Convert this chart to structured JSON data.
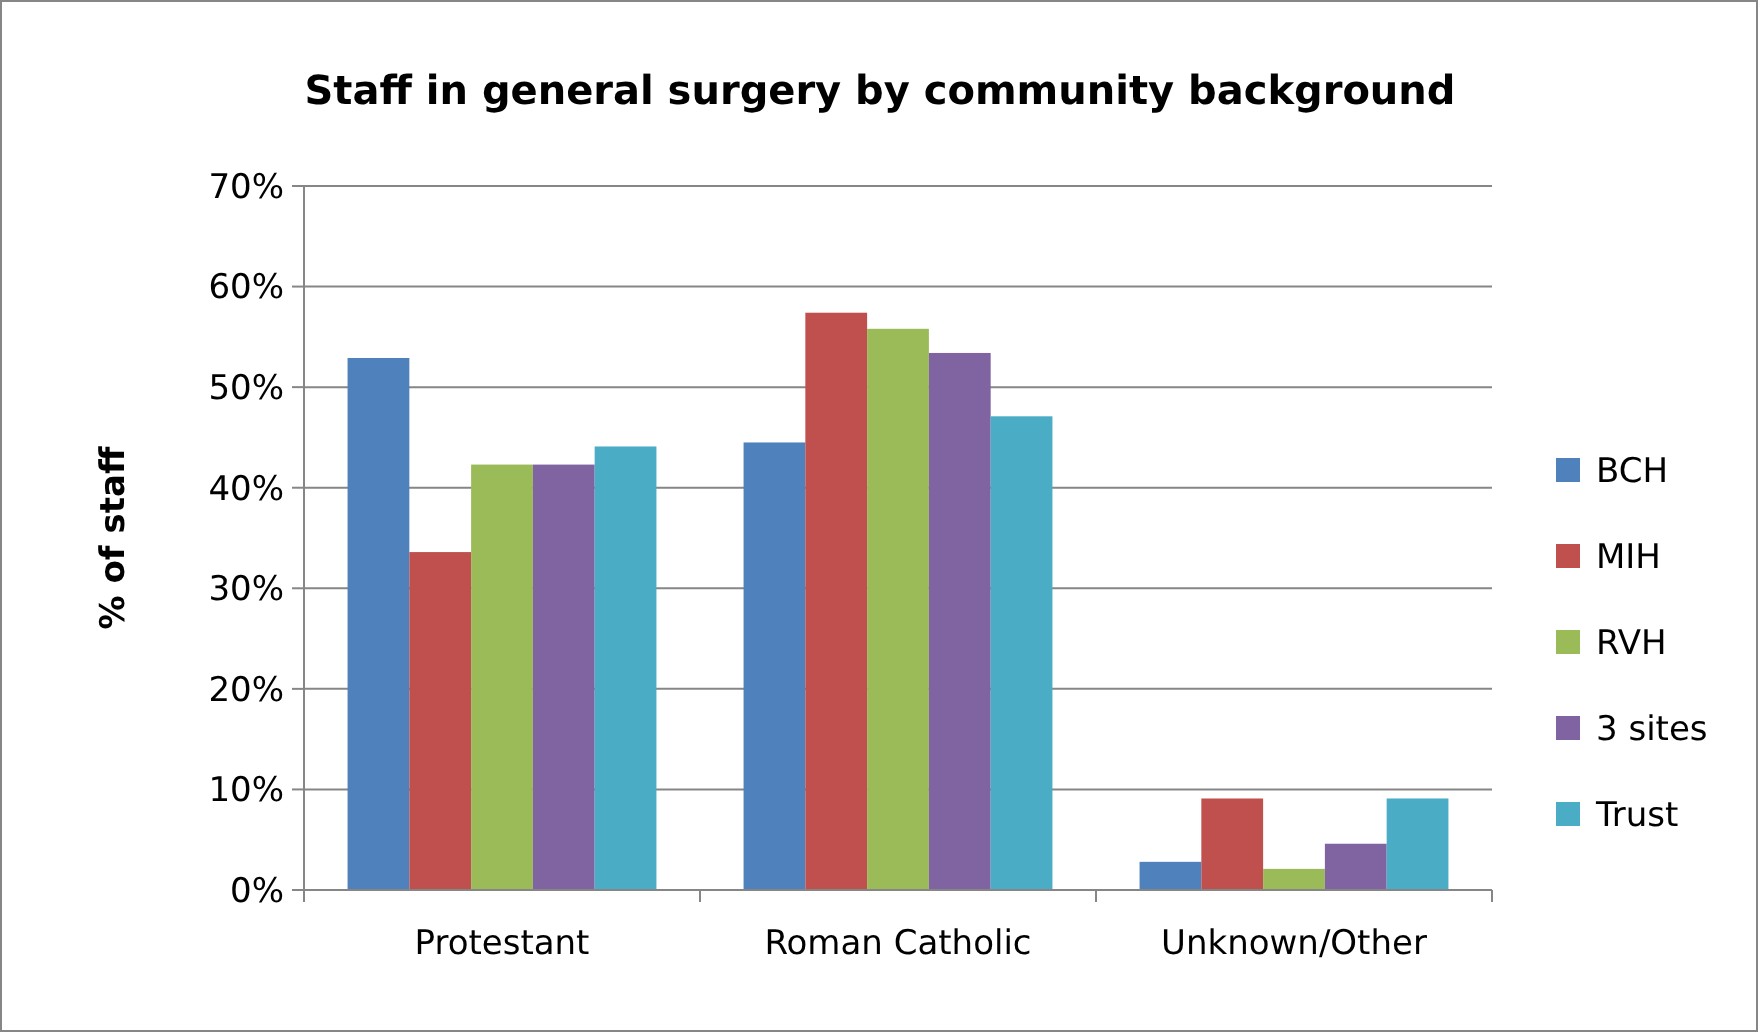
{
  "chart_data": {
    "type": "bar",
    "title": "Staff in general surgery by community background",
    "ylabel": "% of staff",
    "categories": [
      "Protestant",
      "Roman Catholic",
      "Unknown/Other"
    ],
    "series": [
      {
        "name": "BCH",
        "color": "#4f81bd",
        "values": [
          52.9,
          44.5,
          2.8
        ]
      },
      {
        "name": "MIH",
        "color": "#c0504d",
        "values": [
          33.6,
          57.4,
          9.1
        ]
      },
      {
        "name": "RVH",
        "color": "#9bbb59",
        "values": [
          42.3,
          55.8,
          2.1
        ]
      },
      {
        "name": "3 sites",
        "color": "#8064a2",
        "values": [
          42.3,
          53.4,
          4.6
        ]
      },
      {
        "name": "Trust",
        "color": "#4bacc6",
        "values": [
          44.1,
          47.1,
          9.1
        ]
      }
    ],
    "ylim": [
      0,
      70
    ],
    "yticks": [
      {
        "value": 0,
        "label": "0%"
      },
      {
        "value": 10,
        "label": "10%"
      },
      {
        "value": 20,
        "label": "20%"
      },
      {
        "value": 30,
        "label": "30%"
      },
      {
        "value": 40,
        "label": "40%"
      },
      {
        "value": 50,
        "label": "50%"
      },
      {
        "value": 60,
        "label": "60%"
      },
      {
        "value": 70,
        "label": "70%"
      }
    ],
    "grid": "y",
    "legend": "right"
  }
}
